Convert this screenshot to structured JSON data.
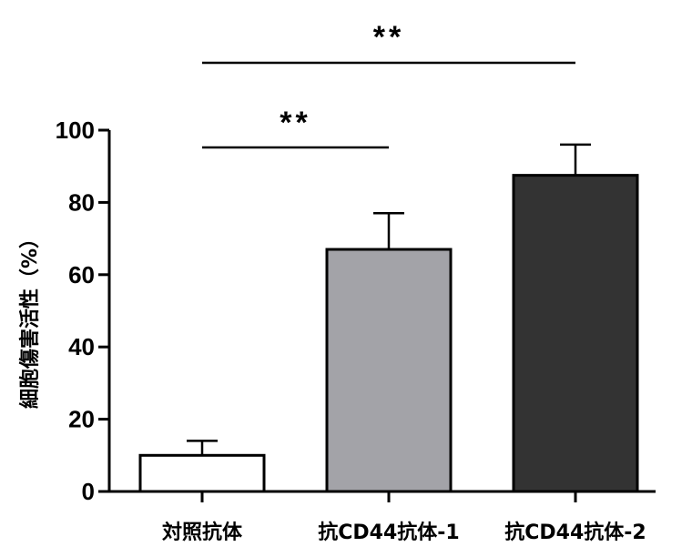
{
  "chart_data": {
    "type": "bar",
    "title": "",
    "xlabel": "",
    "ylabel": "細胞傷害活性（%）",
    "ylim": [
      0,
      100
    ],
    "yticks": [
      0,
      20,
      40,
      60,
      80,
      100
    ],
    "grid": false,
    "categories": [
      "対照抗体",
      "抗CD44抗体-1",
      "抗CD44抗体-2"
    ],
    "values": [
      10,
      67,
      87.5
    ],
    "errors": [
      4,
      10,
      8.5
    ],
    "bar_colors": [
      "#ffffff",
      "#a3a3a8",
      "#333333"
    ],
    "significance": [
      {
        "from": 0,
        "to": 1,
        "label": "**"
      },
      {
        "from": 0,
        "to": 2,
        "label": "**"
      }
    ]
  }
}
